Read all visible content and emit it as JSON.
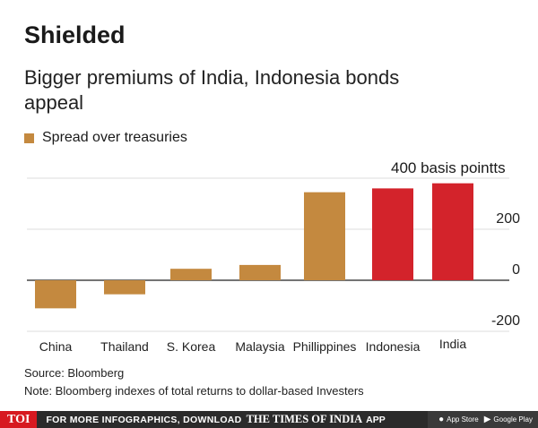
{
  "title": "Shielded",
  "subtitle": "Bigger premiums of India, Indonesia bonds appeal",
  "legend": {
    "label": "Spread over treasuries",
    "color": "#c4893f"
  },
  "annotation": "400 basis pointts",
  "source": "Source: Bloomberg",
  "note": "Note: Bloomberg indexes of total returns to dollar-based Investers",
  "footer": {
    "logo": "TOI",
    "promo": "FOR MORE INFOGRAPHICS, DOWNLOAD",
    "brand": "THE TIMES OF INDIA",
    "app": "APP",
    "app_store": "App Store",
    "app_store_icon": "apple-icon",
    "google_play": "Google Play",
    "google_play_icon": "play-icon"
  },
  "chart_data": {
    "type": "bar",
    "categories": [
      "China",
      "Thailand",
      "S. Korea",
      "Malaysia",
      "Phillippines",
      "Indonesia",
      "India"
    ],
    "series": [
      {
        "name": "Spread over treasuries",
        "values": [
          -110,
          -55,
          45,
          60,
          345,
          360,
          380
        ]
      }
    ],
    "highlight": [
      "Indonesia",
      "India"
    ],
    "colors": {
      "default": "#c4893f",
      "highlight": "#d3232b"
    },
    "ylim": [
      -200,
      400
    ],
    "yticks": [
      200,
      0,
      -200
    ],
    "ytick_labels": [
      "200",
      "0",
      "-200"
    ],
    "grid": true
  }
}
